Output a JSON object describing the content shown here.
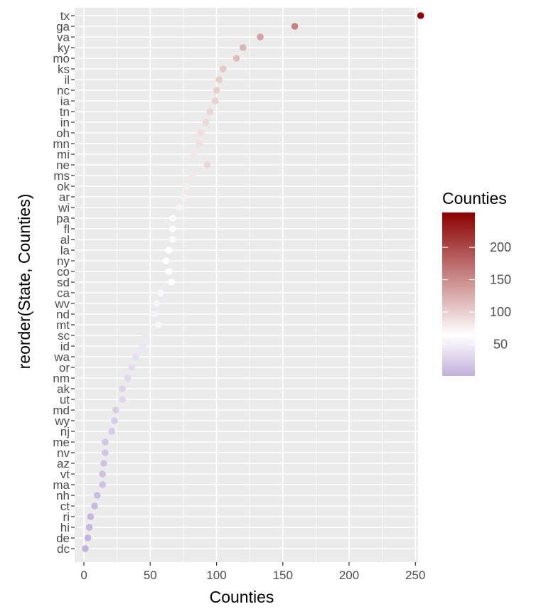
{
  "chart_data": {
    "type": "scatter",
    "title": "",
    "xlabel": "Counties",
    "ylabel": "reorder(State, Counties)",
    "xlim": [
      -7,
      252
    ],
    "x_ticks": [
      0,
      50,
      100,
      150,
      200,
      250
    ],
    "grid": true,
    "categories": [
      "dc",
      "de",
      "hi",
      "ri",
      "ct",
      "nh",
      "ma",
      "vt",
      "az",
      "nv",
      "me",
      "nj",
      "wy",
      "md",
      "ut",
      "ak",
      "nm",
      "or",
      "wa",
      "id",
      "sc",
      "mt",
      "nd",
      "wv",
      "ca",
      "sd",
      "co",
      "ny",
      "la",
      "al",
      "fl",
      "pa",
      "wi",
      "ar",
      "ok",
      "ms",
      "ne",
      "mi",
      "mn",
      "oh",
      "in",
      "tn",
      "ia",
      "nc",
      "il",
      "ks",
      "mo",
      "ky",
      "va",
      "ga",
      "tx"
    ],
    "values": [
      1,
      3,
      4,
      5,
      8,
      10,
      14,
      14,
      15,
      16,
      16,
      21,
      23,
      24,
      29,
      29,
      33,
      36,
      39,
      44,
      46,
      56,
      53,
      55,
      58,
      66,
      64,
      62,
      64,
      67,
      67,
      67,
      72,
      75,
      77,
      82,
      93,
      83,
      87,
      88,
      92,
      95,
      99,
      100,
      102,
      105,
      115,
      120,
      133,
      159,
      254
    ],
    "color_scale": {
      "title": "Counties",
      "low_color": "#c4b1dd",
      "mid_color": "#ffffff",
      "high_color": "#8b0000",
      "midpoint": 64,
      "domain": [
        1,
        254
      ],
      "legend_ticks": [
        50,
        100,
        150,
        200
      ]
    },
    "legend_position": "right"
  }
}
